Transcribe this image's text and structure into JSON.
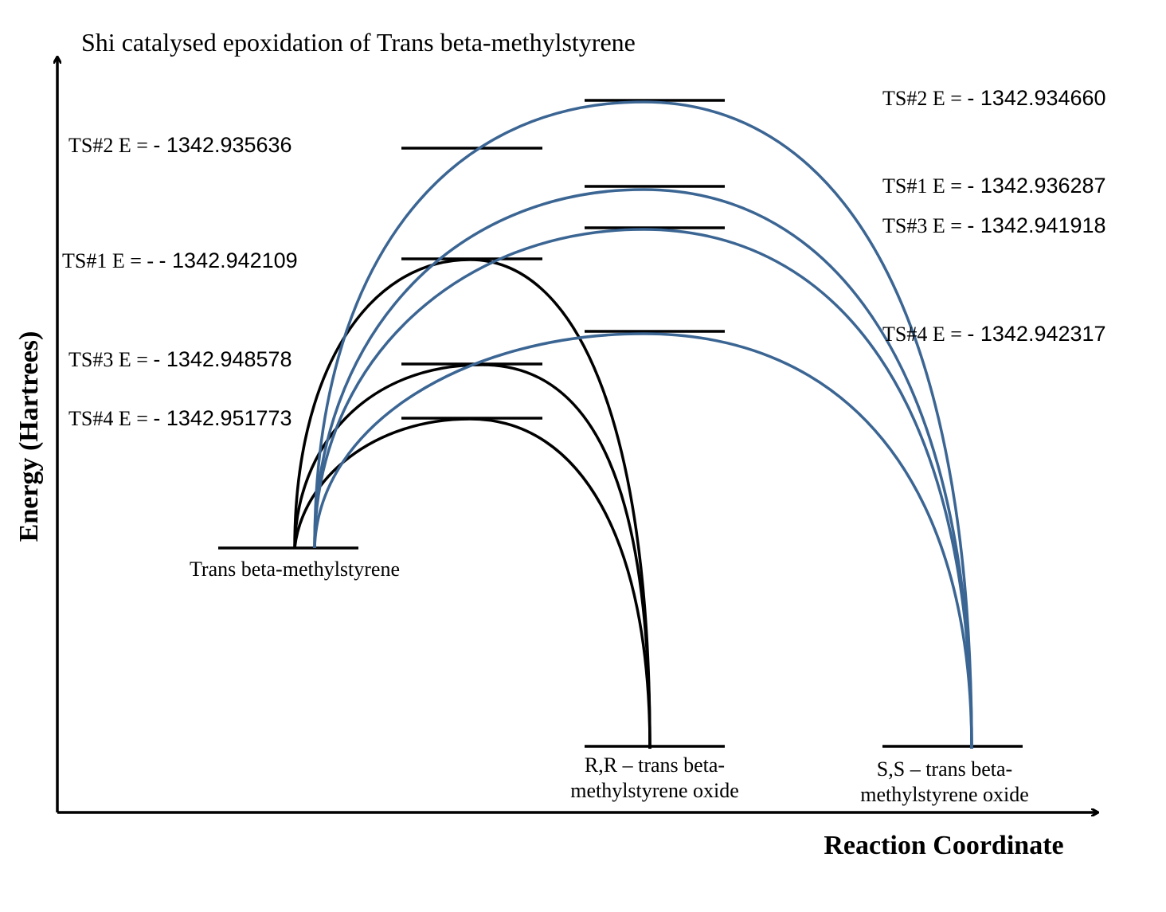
{
  "title": "Shi catalysed epoxidation of  Trans beta-methylstyrene",
  "axes": {
    "y_label": "Energy (Hartrees)",
    "x_label": "Reaction Coordinate"
  },
  "colors": {
    "rr_path": "#000000",
    "ss_path": "#3b6593",
    "levels": "#000000"
  },
  "states": {
    "reactant": "Trans beta-methylstyrene",
    "product_rr_line1": "R,R – trans beta-",
    "product_rr_line2": "methylstyrene oxide",
    "product_ss_line1": "S,S – trans beta-",
    "product_ss_line2": "methylstyrene oxide"
  },
  "rr_transition_states": [
    {
      "prefix": "TS#2 E = ",
      "value": "- 1342.935636",
      "energy": -1342.935636
    },
    {
      "prefix": "TS#1 E = - ",
      "value": "- 1342.942109",
      "energy": -1342.942109
    },
    {
      "prefix": "TS#3 E = ",
      "value": "- 1342.948578",
      "energy": -1342.948578
    },
    {
      "prefix": "TS#4 E = ",
      "value": "- 1342.951773",
      "energy": -1342.951773
    }
  ],
  "ss_transition_states": [
    {
      "prefix": "TS#2 E = ",
      "value": "- 1342.934660",
      "energy": -1342.93466
    },
    {
      "prefix": "TS#1 E = ",
      "value": "- 1342.936287",
      "energy": -1342.936287
    },
    {
      "prefix": "TS#3 E = ",
      "value": "- 1342.941918",
      "energy": -1342.941918
    },
    {
      "prefix": "TS#4 E = ",
      "value": "- 1342.942317",
      "energy": -1342.942317
    }
  ]
}
